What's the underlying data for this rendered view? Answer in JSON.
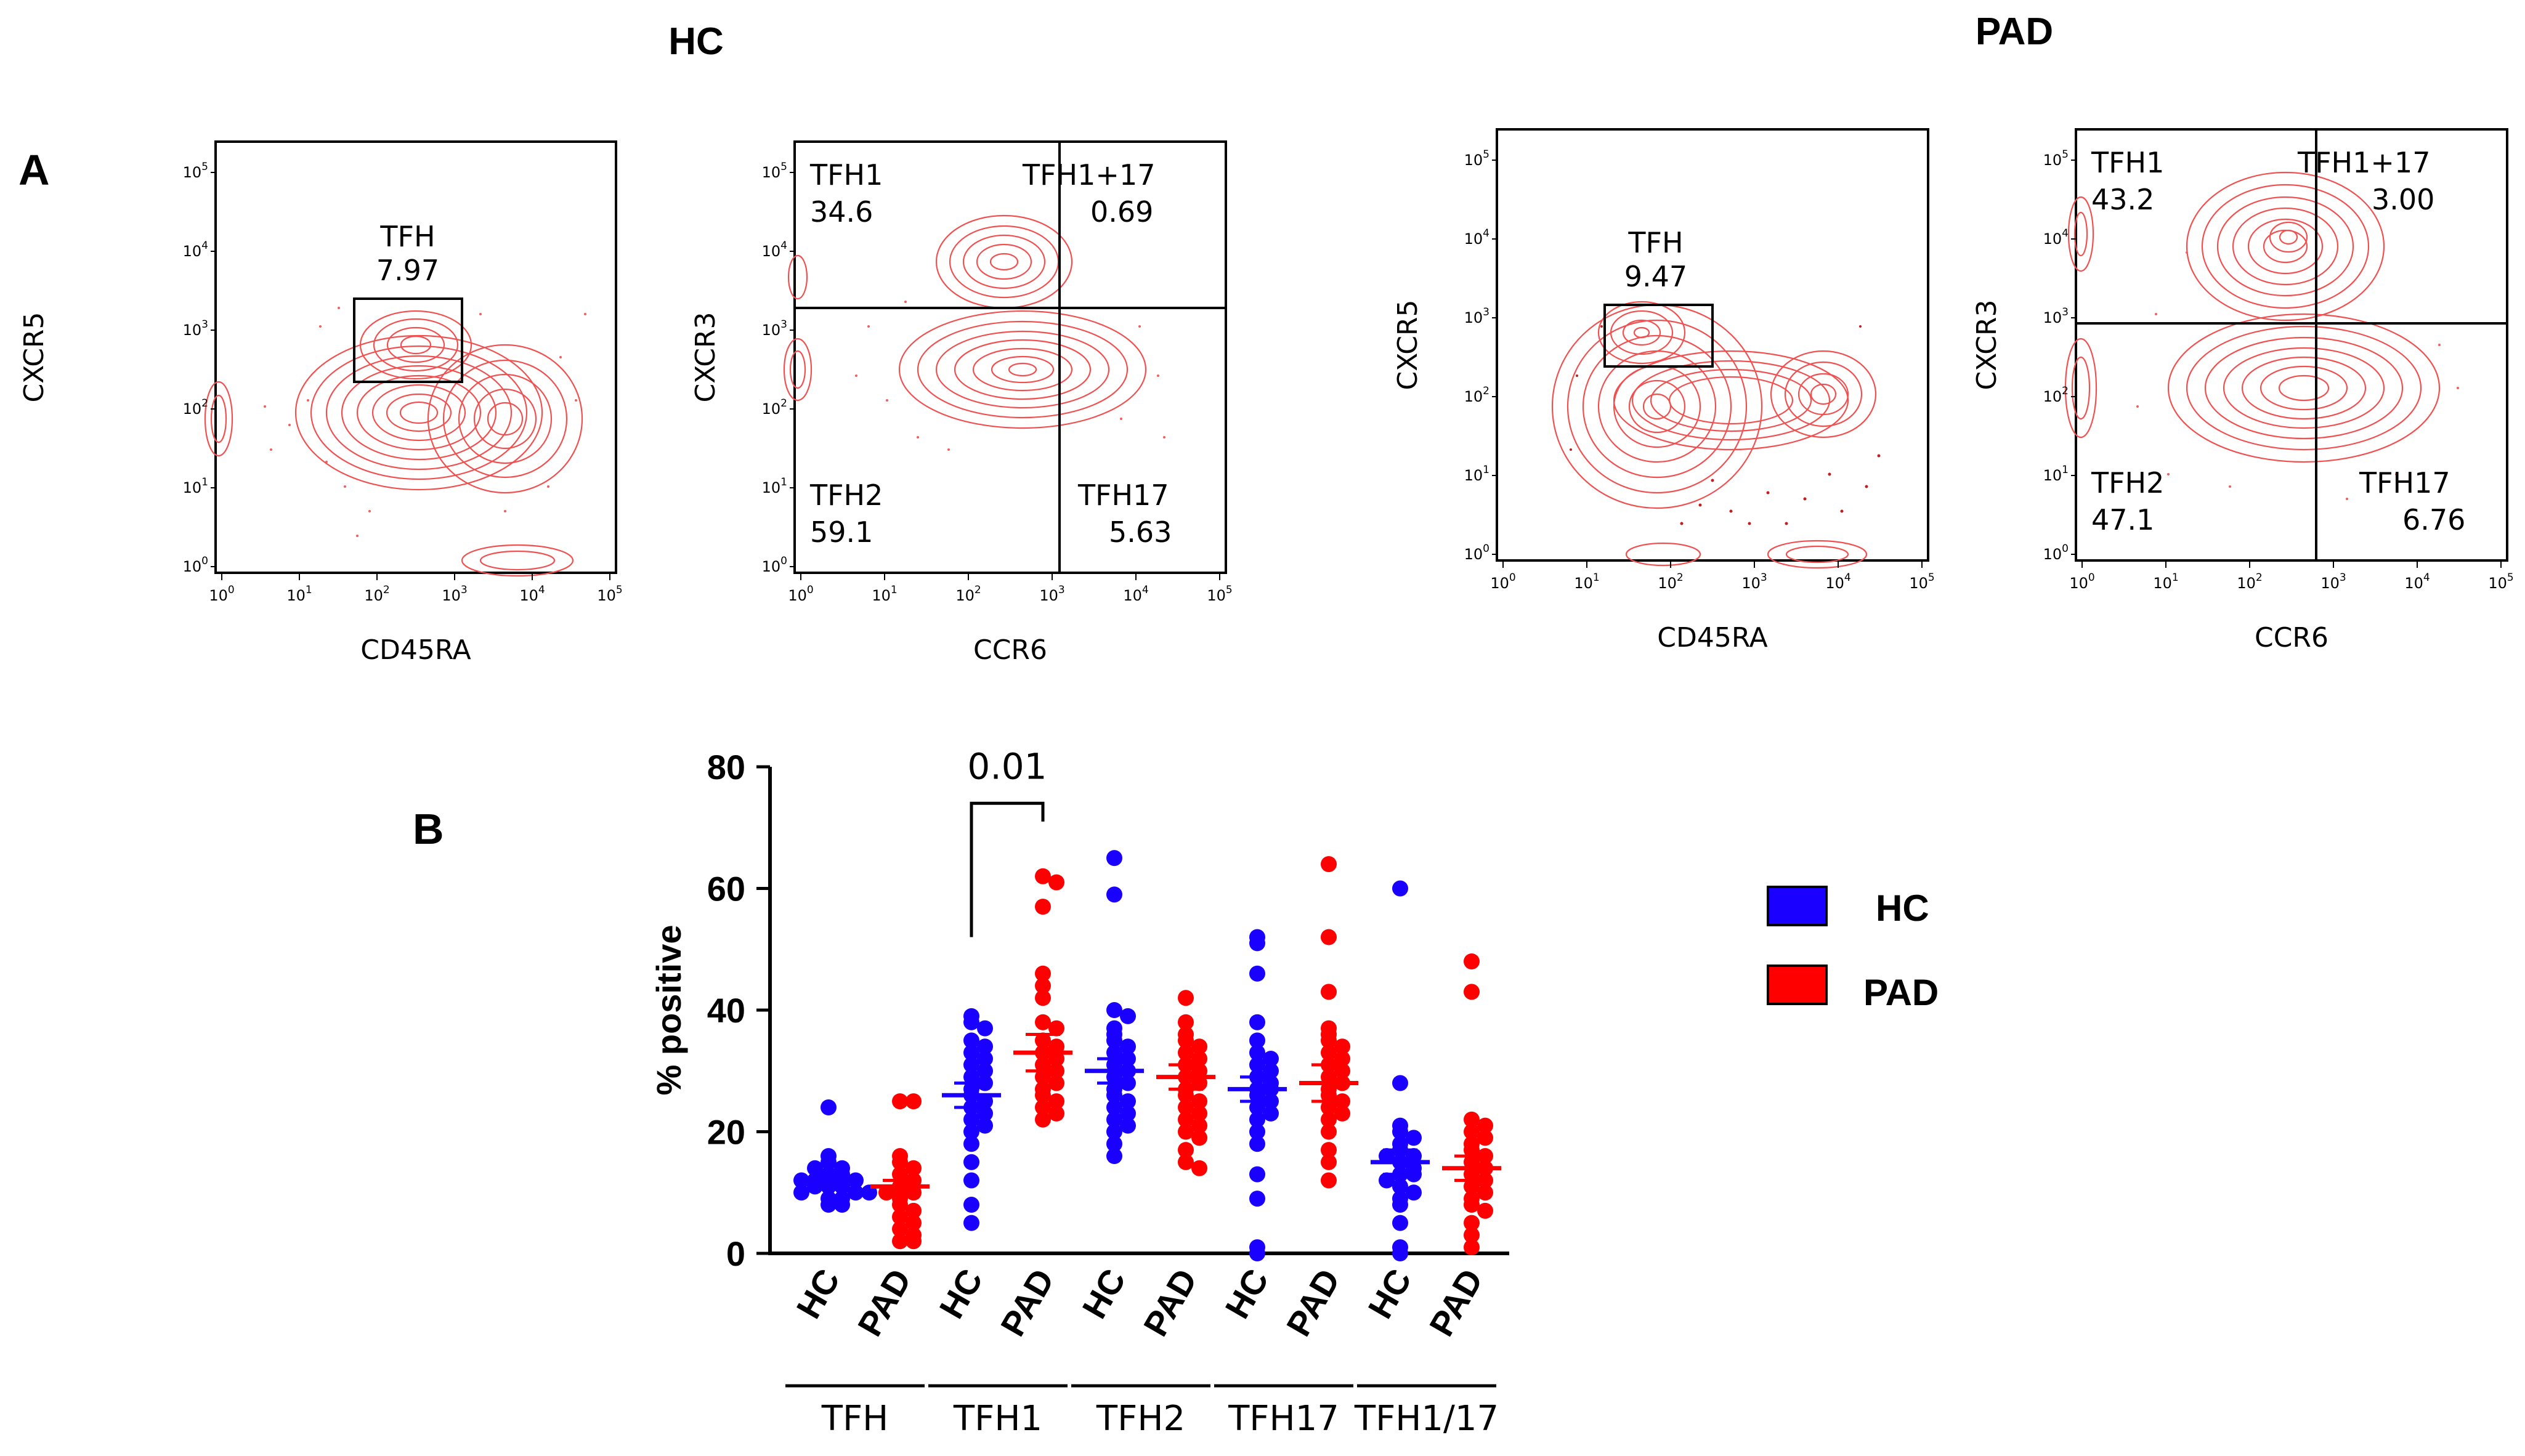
{
  "titles": {
    "hc": "HC",
    "pad": "PAD"
  },
  "panel_labels": {
    "a": "A",
    "b": "B"
  },
  "flow": {
    "decades": [
      "10",
      "10",
      "10",
      "10",
      "10",
      "10"
    ],
    "exponents": [
      "0",
      "1",
      "2",
      "3",
      "4",
      "5"
    ],
    "hc_cxcr5": {
      "xlabel": "CD45RA",
      "ylabel": "CXCR5",
      "gate_name": "TFH",
      "gate_value": "7.97"
    },
    "hc_cxcr3": {
      "xlabel": "CCR6",
      "ylabel": "CXCR3",
      "quadrants": {
        "tl_name": "TFH1",
        "tl_value": "34.6",
        "tr_name": "TFH1+17",
        "tr_value": "0.69",
        "bl_name": "TFH2",
        "bl_value": "59.1",
        "br_name": "TFH17",
        "br_value": "5.63"
      }
    },
    "pad_cxcr5": {
      "xlabel": "CD45RA",
      "ylabel": "CXCR5",
      "gate_name": "TFH",
      "gate_value": "9.47"
    },
    "pad_cxcr3": {
      "xlabel": "CCR6",
      "ylabel": "CXCR3",
      "quadrants": {
        "tl_name": "TFH1",
        "tl_value": "43.2",
        "tr_name": "TFH1+17",
        "tr_value": "3.00",
        "bl_name": "TFH2",
        "bl_value": "47.1",
        "br_name": "TFH17",
        "br_value": "6.76"
      }
    }
  },
  "legend": {
    "hc_label": "HC",
    "pad_label": "PAD",
    "hc_color": "#1a00ff",
    "pad_color": "#ff0000"
  },
  "chart_data": {
    "type": "scatter",
    "title": "",
    "ylabel": "% positive",
    "xlabel": "",
    "ylim": [
      0,
      80
    ],
    "yticks": [
      "0",
      "20",
      "40",
      "60",
      "80"
    ],
    "x_labels": [
      "HC",
      "PAD",
      "HC",
      "PAD",
      "HC",
      "PAD",
      "HC",
      "PAD",
      "HC",
      "PAD"
    ],
    "group_labels": [
      "TFH",
      "TFH1",
      "TFH2",
      "TFH17",
      "TFH1/17"
    ],
    "annotation": {
      "text": "0.01",
      "between": [
        2,
        3
      ]
    },
    "series": [
      {
        "name": "HC",
        "color": "#1a00ff",
        "positions": [
          0,
          2,
          4,
          6,
          8
        ],
        "groups": [
          {
            "mean": 12,
            "sem": 1,
            "values": [
              24,
              16,
              15,
              14,
              14,
              13,
              13,
              12,
              12,
              12,
              11,
              11,
              11,
              10,
              10,
              10,
              9,
              9,
              8,
              8
            ]
          },
          {
            "mean": 26,
            "sem": 2,
            "values": [
              39,
              38,
              37,
              35,
              34,
              33,
              32,
              31,
              30,
              29,
              28,
              27,
              26,
              25,
              24,
              23,
              22,
              21,
              20,
              18,
              15,
              12,
              8,
              5
            ]
          },
          {
            "mean": 30,
            "sem": 2,
            "values": [
              65,
              59,
              40,
              39,
              37,
              36,
              35,
              34,
              33,
              32,
              31,
              30,
              29,
              28,
              27,
              26,
              25,
              24,
              23,
              22,
              21,
              20,
              18,
              16
            ]
          },
          {
            "mean": 27,
            "sem": 2,
            "values": [
              52,
              51,
              46,
              38,
              35,
              33,
              32,
              31,
              30,
              29,
              28,
              27,
              27,
              26,
              25,
              24,
              23,
              22,
              20,
              18,
              13,
              9,
              1,
              0
            ]
          },
          {
            "mean": 15,
            "sem": 2,
            "values": [
              60,
              28,
              21,
              20,
              19,
              18,
              17,
              16,
              16,
              15,
              14,
              13,
              13,
              12,
              11,
              10,
              9,
              8,
              5,
              1,
              0
            ]
          }
        ]
      },
      {
        "name": "PAD",
        "color": "#ff0000",
        "positions": [
          1,
          3,
          5,
          7,
          9
        ],
        "groups": [
          {
            "mean": 11,
            "sem": 1,
            "values": [
              25,
              25,
              16,
              15,
              14,
              13,
              12,
              11,
              10,
              10,
              9,
              8,
              7,
              6,
              5,
              4,
              3,
              2,
              2
            ]
          },
          {
            "mean": 33,
            "sem": 3,
            "values": [
              62,
              61,
              57,
              46,
              44,
              42,
              38,
              37,
              35,
              34,
              33,
              32,
              31,
              30,
              29,
              28,
              27,
              26,
              25,
              24,
              23,
              22
            ]
          },
          {
            "mean": 29,
            "sem": 2,
            "values": [
              42,
              38,
              36,
              35,
              34,
              33,
              32,
              31,
              30,
              29,
              28,
              27,
              26,
              25,
              24,
              23,
              22,
              21,
              20,
              19,
              17,
              15,
              14
            ]
          },
          {
            "mean": 28,
            "sem": 3,
            "values": [
              64,
              52,
              43,
              37,
              36,
              35,
              34,
              33,
              32,
              31,
              30,
              29,
              28,
              27,
              26,
              25,
              24,
              23,
              22,
              20,
              17,
              15,
              12
            ]
          },
          {
            "mean": 14,
            "sem": 2,
            "values": [
              48,
              43,
              22,
              21,
              20,
              19,
              18,
              17,
              16,
              15,
              14,
              13,
              12,
              11,
              10,
              9,
              8,
              7,
              5,
              3,
              1
            ]
          }
        ]
      }
    ]
  }
}
